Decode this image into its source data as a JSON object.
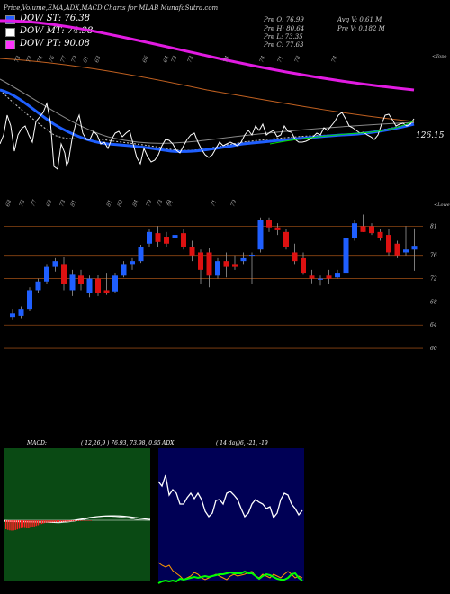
{
  "title": "Price,Volume,EMA,ADX,MACD Charts for MLAB MunafaSutra.com",
  "dow_lines": [
    {
      "label": "DOW ST: 76.38",
      "color": "#1f5fff"
    },
    {
      "label": "DOW MT: 74.98",
      "color": "#ffffff"
    },
    {
      "label": "DOW PT: 90.08",
      "color": "#ff33ff"
    }
  ],
  "quote": {
    "prev_open": "Pre  O: 76.99",
    "prev_high": "Pre  H: 80.64",
    "prev_low": "Pre  L: 73.35",
    "prev_close": "Pre  C: 77.63",
    "avg_volume": "Avg V: 0.61 M",
    "prev_volume": "Pre  V: 0.182  M"
  },
  "ema_panel": {
    "last_value_label": "126.15",
    "top_note": "<Topo",
    "top_ticks": [
      "73",
      "73",
      "74",
      "76",
      "77",
      "79",
      "61",
      "63",
      "66",
      "64",
      "73",
      "73",
      "74",
      "74",
      "71",
      "78",
      "74"
    ]
  },
  "price_panel": {
    "top_note": "<Lowe",
    "top_ticks": [
      "68",
      "73",
      "77",
      "69",
      "73",
      "81",
      "81",
      "82",
      "84",
      "79",
      "73",
      "72",
      "71",
      "71",
      "79"
    ],
    "y_labels": [
      "81",
      "76",
      "72",
      "68",
      "64",
      "60"
    ]
  },
  "macd_panel": {
    "label": "MACD:",
    "values": "( 12,26,9 ) 76.93, 73.98, 0.95"
  },
  "adx_panel": {
    "label": "ADX",
    "values": "( 14  day)6,  -21,  -19"
  },
  "chart_data": {
    "type": "candlestick",
    "y_ticks": [
      81,
      76,
      72,
      68,
      64,
      60
    ],
    "ylim": [
      58,
      84
    ],
    "candles": [
      {
        "o": 66.0,
        "h": 66.8,
        "l": 65.0,
        "c": 65.4,
        "dir": "up"
      },
      {
        "o": 65.6,
        "h": 67.2,
        "l": 65.2,
        "c": 66.8,
        "dir": "up"
      },
      {
        "o": 66.8,
        "h": 70.5,
        "l": 66.5,
        "c": 70.0,
        "dir": "up"
      },
      {
        "o": 70.0,
        "h": 72.0,
        "l": 69.5,
        "c": 71.5,
        "dir": "up"
      },
      {
        "o": 71.5,
        "h": 74.5,
        "l": 71.0,
        "c": 74.0,
        "dir": "up"
      },
      {
        "o": 74.0,
        "h": 75.5,
        "l": 73.2,
        "c": 75.0,
        "dir": "up"
      },
      {
        "o": 74.5,
        "h": 75.8,
        "l": 70.0,
        "c": 71.0,
        "dir": "down"
      },
      {
        "o": 70.0,
        "h": 73.5,
        "l": 69.0,
        "c": 72.8,
        "dir": "up"
      },
      {
        "o": 72.5,
        "h": 73.5,
        "l": 70.0,
        "c": 71.0,
        "dir": "down"
      },
      {
        "o": 69.5,
        "h": 72.5,
        "l": 68.8,
        "c": 72.0,
        "dir": "up"
      },
      {
        "o": 72.0,
        "h": 72.6,
        "l": 69.0,
        "c": 69.5,
        "dir": "down"
      },
      {
        "o": 69.5,
        "h": 73.0,
        "l": 69.2,
        "c": 70.0,
        "dir": "down"
      },
      {
        "o": 69.8,
        "h": 73.0,
        "l": 69.5,
        "c": 72.5,
        "dir": "up"
      },
      {
        "o": 72.5,
        "h": 75.0,
        "l": 72.2,
        "c": 74.5,
        "dir": "up"
      },
      {
        "o": 74.5,
        "h": 75.5,
        "l": 73.5,
        "c": 75.0,
        "dir": "up"
      },
      {
        "o": 75.0,
        "h": 77.8,
        "l": 74.7,
        "c": 77.5,
        "dir": "up"
      },
      {
        "o": 78.0,
        "h": 80.5,
        "l": 77.5,
        "c": 80.0,
        "dir": "up"
      },
      {
        "o": 79.8,
        "h": 81.0,
        "l": 77.5,
        "c": 78.3,
        "dir": "down"
      },
      {
        "o": 78.0,
        "h": 80.0,
        "l": 77.5,
        "c": 79.2,
        "dir": "down"
      },
      {
        "o": 79.5,
        "h": 80.4,
        "l": 76.5,
        "c": 79.0,
        "dir": "up"
      },
      {
        "o": 79.8,
        "h": 80.5,
        "l": 77.0,
        "c": 77.5,
        "dir": "down"
      },
      {
        "o": 77.5,
        "h": 78.5,
        "l": 75.0,
        "c": 76.0,
        "dir": "down"
      },
      {
        "o": 76.5,
        "h": 77.0,
        "l": 71.0,
        "c": 73.5,
        "dir": "down"
      },
      {
        "o": 76.5,
        "h": 77.2,
        "l": 70.5,
        "c": 72.5,
        "dir": "down"
      },
      {
        "o": 72.5,
        "h": 75.5,
        "l": 72.0,
        "c": 75.0,
        "dir": "up"
      },
      {
        "o": 75.0,
        "h": 76.5,
        "l": 72.2,
        "c": 74.0,
        "dir": "down"
      },
      {
        "o": 74.5,
        "h": 76.0,
        "l": 73.5,
        "c": 74.0,
        "dir": "down"
      },
      {
        "o": 75.0,
        "h": 76.5,
        "l": 74.5,
        "c": 75.5,
        "dir": "up"
      },
      {
        "o": 76.0,
        "h": 76.5,
        "l": 71.0,
        "c": 76.1,
        "dir": "up"
      },
      {
        "o": 77.0,
        "h": 82.5,
        "l": 76.5,
        "c": 82.0,
        "dir": "up"
      },
      {
        "o": 82.0,
        "h": 82.5,
        "l": 80.0,
        "c": 80.8,
        "dir": "down"
      },
      {
        "o": 80.8,
        "h": 81.5,
        "l": 79.5,
        "c": 80.3,
        "dir": "down"
      },
      {
        "o": 80.0,
        "h": 80.5,
        "l": 77.0,
        "c": 77.5,
        "dir": "down"
      },
      {
        "o": 76.5,
        "h": 78.0,
        "l": 74.5,
        "c": 75.0,
        "dir": "down"
      },
      {
        "o": 75.5,
        "h": 76.5,
        "l": 72.8,
        "c": 73.0,
        "dir": "down"
      },
      {
        "o": 72.5,
        "h": 73.5,
        "l": 71.2,
        "c": 72.0,
        "dir": "down"
      },
      {
        "o": 71.8,
        "h": 72.5,
        "l": 70.8,
        "c": 72.0,
        "dir": "up"
      },
      {
        "o": 72.5,
        "h": 73.5,
        "l": 71.0,
        "c": 72.0,
        "dir": "down"
      },
      {
        "o": 72.2,
        "h": 73.5,
        "l": 72.0,
        "c": 73.0,
        "dir": "up"
      },
      {
        "o": 73.0,
        "h": 79.5,
        "l": 72.2,
        "c": 79.0,
        "dir": "up"
      },
      {
        "o": 79.0,
        "h": 82.0,
        "l": 78.5,
        "c": 81.5,
        "dir": "up"
      },
      {
        "o": 81.0,
        "h": 83.0,
        "l": 80.0,
        "c": 80.0,
        "dir": "down"
      },
      {
        "o": 81.0,
        "h": 81.5,
        "l": 79.5,
        "c": 79.8,
        "dir": "down"
      },
      {
        "o": 80.0,
        "h": 80.5,
        "l": 78.5,
        "c": 79.0,
        "dir": "down"
      },
      {
        "o": 79.5,
        "h": 80.5,
        "l": 76.0,
        "c": 76.5,
        "dir": "down"
      },
      {
        "o": 78.0,
        "h": 78.5,
        "l": 75.5,
        "c": 76.0,
        "dir": "down"
      },
      {
        "o": 76.5,
        "h": 81.0,
        "l": 76.0,
        "c": 77.0,
        "dir": "up"
      },
      {
        "o": 76.99,
        "h": 80.64,
        "l": 73.35,
        "c": 77.63,
        "dir": "up"
      }
    ],
    "dow_lines": [
      {
        "name": "DOW ST",
        "value": 76.38
      },
      {
        "name": "DOW MT",
        "value": 74.98
      },
      {
        "name": "DOW PT",
        "value": 90.08
      }
    ],
    "macd": {
      "fast": 12,
      "slow": 26,
      "signal": 9,
      "macd": 76.93,
      "signal_value": 73.98,
      "histogram": 0.95
    },
    "adx": {
      "period": 14,
      "adx": 6,
      "plus_di": -21,
      "minus_di": -19
    }
  }
}
